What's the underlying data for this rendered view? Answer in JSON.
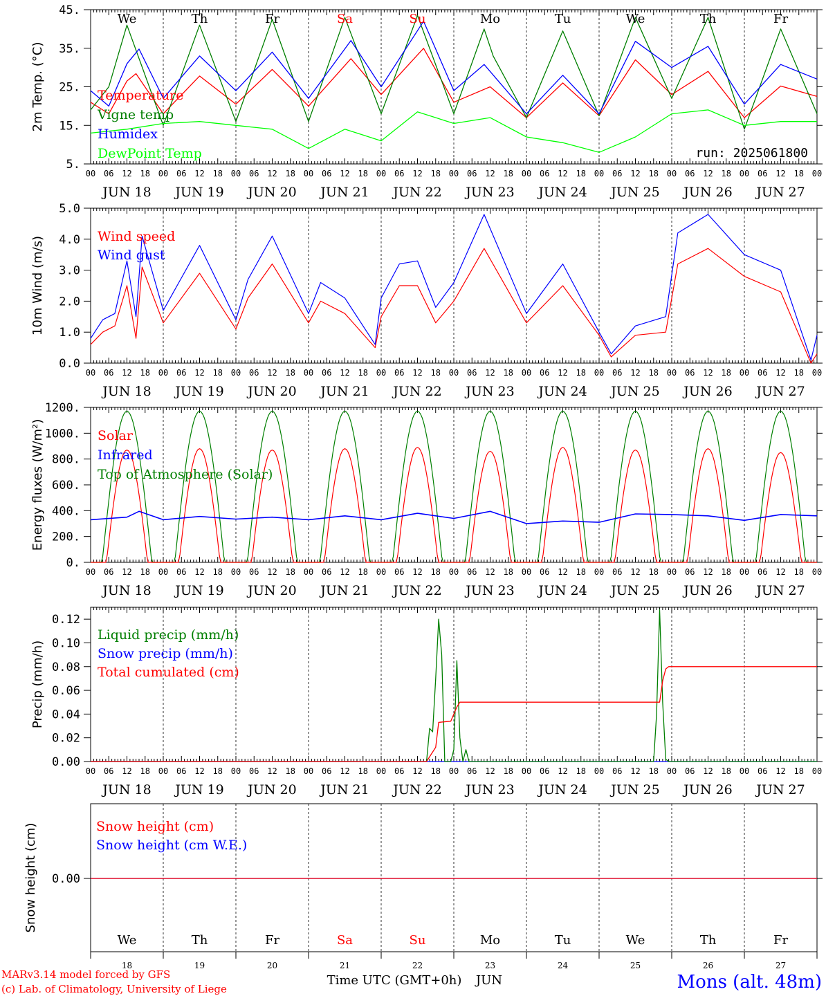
{
  "colors": {
    "temperature": "#ff0000",
    "vigne": "#007f00",
    "humidex": "#0000ff",
    "dewpoint": "#00ff00",
    "weekend": "#ff0000",
    "station": "#0000ff"
  },
  "days": [
    "JUN 18",
    "JUN 19",
    "JUN 20",
    "JUN 21",
    "JUN 22",
    "JUN 23",
    "JUN 24",
    "JUN 25",
    "JUN 26",
    "JUN 27"
  ],
  "weekdays": [
    {
      "label": "We",
      "weekend": false
    },
    {
      "label": "Th",
      "weekend": false
    },
    {
      "label": "Fr",
      "weekend": false
    },
    {
      "label": "Sa",
      "weekend": true
    },
    {
      "label": "Su",
      "weekend": true
    },
    {
      "label": "Mo",
      "weekend": false
    },
    {
      "label": "Tu",
      "weekend": false
    },
    {
      "label": "We",
      "weekend": false
    },
    {
      "label": "Th",
      "weekend": false
    },
    {
      "label": "Fr",
      "weekend": false
    }
  ],
  "day_numbers": [
    "18",
    "19",
    "20",
    "21",
    "22",
    "23",
    "24",
    "25",
    "26",
    "27"
  ],
  "hour_labels": [
    "00",
    "06",
    "12",
    "18"
  ],
  "final_hour_label": "00",
  "run_label": "run: 2025061800",
  "x_title": "Time UTC (GMT+0h)",
  "month": "JUN",
  "footer": {
    "line1": "MARv3.14 model forced by GFS",
    "line2": "(c) Lab. of Climatology, University of Liege",
    "station": "Mons (alt. 48m)"
  },
  "chart_data": [
    {
      "type": "line",
      "ylabel": "2m Temp. (°C)",
      "ylim": [
        5,
        45
      ],
      "yticks": [
        "5.",
        "15.",
        "25.",
        "35.",
        "45."
      ],
      "x_unit": "hours since 2025-06-18 00 UTC",
      "series": [
        {
          "name": "Temperature",
          "key": "temperature",
          "points": [
            [
              0,
              21
            ],
            [
              6,
              18
            ],
            [
              12,
              26.5
            ],
            [
              15,
              28.4
            ],
            [
              24,
              18
            ],
            [
              36,
              27.8
            ],
            [
              48,
              20.5
            ],
            [
              60,
              29.5
            ],
            [
              72,
              20
            ],
            [
              86,
              32.3
            ],
            [
              96,
              23
            ],
            [
              110,
              35
            ],
            [
              120,
              21
            ],
            [
              132,
              25
            ],
            [
              144,
              17
            ],
            [
              156,
              26
            ],
            [
              168,
              17.5
            ],
            [
              180,
              32
            ],
            [
              192,
              23
            ],
            [
              204,
              29
            ],
            [
              216,
              17
            ],
            [
              228,
              25.2
            ],
            [
              240,
              22.5
            ]
          ]
        },
        {
          "name": "Vigne temp",
          "key": "vigne",
          "points": [
            [
              0,
              19
            ],
            [
              6,
              25
            ],
            [
              12,
              41
            ],
            [
              24,
              15
            ],
            [
              36,
              41
            ],
            [
              48,
              16
            ],
            [
              60,
              42.5
            ],
            [
              72,
              16
            ],
            [
              84,
              43
            ],
            [
              96,
              18
            ],
            [
              108,
              43.5
            ],
            [
              120,
              18
            ],
            [
              130,
              40
            ],
            [
              133,
              33
            ],
            [
              144,
              17
            ],
            [
              156,
              39.5
            ],
            [
              168,
              17.5
            ],
            [
              180,
              43
            ],
            [
              192,
              22
            ],
            [
              204,
              43
            ],
            [
              216,
              14
            ],
            [
              228,
              40
            ],
            [
              240,
              18
            ]
          ]
        },
        {
          "name": "Humidex",
          "key": "humidex",
          "points": [
            [
              0,
              24
            ],
            [
              6,
              20
            ],
            [
              12,
              31
            ],
            [
              16,
              34.8
            ],
            [
              24,
              22
            ],
            [
              36,
              33
            ],
            [
              48,
              24
            ],
            [
              60,
              34
            ],
            [
              72,
              22
            ],
            [
              86,
              37
            ],
            [
              96,
              25
            ],
            [
              110,
              42
            ],
            [
              120,
              24
            ],
            [
              130,
              30.8
            ],
            [
              144,
              18
            ],
            [
              156,
              28
            ],
            [
              168,
              18
            ],
            [
              180,
              36.8
            ],
            [
              192,
              30
            ],
            [
              204,
              35.5
            ],
            [
              216,
              20.5
            ],
            [
              228,
              30.8
            ],
            [
              240,
              27
            ]
          ]
        },
        {
          "name": "DewPoint Temp",
          "key": "dewpoint",
          "points": [
            [
              0,
              13
            ],
            [
              12,
              14
            ],
            [
              24,
              15.5
            ],
            [
              36,
              16
            ],
            [
              48,
              15
            ],
            [
              60,
              14
            ],
            [
              72,
              9
            ],
            [
              84,
              14
            ],
            [
              96,
              11
            ],
            [
              108,
              18.5
            ],
            [
              120,
              15.5
            ],
            [
              132,
              17
            ],
            [
              144,
              12
            ],
            [
              156,
              10.5
            ],
            [
              168,
              8
            ],
            [
              180,
              12
            ],
            [
              192,
              18
            ],
            [
              204,
              19
            ],
            [
              216,
              15
            ],
            [
              228,
              16
            ],
            [
              240,
              16
            ]
          ]
        }
      ]
    },
    {
      "type": "line",
      "ylabel": "10m Wind (m/s)",
      "ylim": [
        0,
        5
      ],
      "yticks": [
        "0.0",
        "1.0",
        "2.0",
        "3.0",
        "4.0",
        "5.0"
      ],
      "series": [
        {
          "name": "Wind speed",
          "key": "temperature",
          "points": [
            [
              0,
              0.6
            ],
            [
              4,
              1.0
            ],
            [
              8,
              1.2
            ],
            [
              12,
              2.5
            ],
            [
              15,
              0.8
            ],
            [
              17,
              3.1
            ],
            [
              24,
              1.3
            ],
            [
              36,
              2.9
            ],
            [
              48,
              1.1
            ],
            [
              52,
              2.1
            ],
            [
              60,
              3.2
            ],
            [
              72,
              1.3
            ],
            [
              76,
              2.0
            ],
            [
              84,
              1.6
            ],
            [
              94,
              0.5
            ],
            [
              96,
              1.5
            ],
            [
              102,
              2.5
            ],
            [
              108,
              2.5
            ],
            [
              114,
              1.3
            ],
            [
              120,
              2.0
            ],
            [
              130,
              3.7
            ],
            [
              144,
              1.3
            ],
            [
              156,
              2.5
            ],
            [
              168,
              0.9
            ],
            [
              172,
              0.2
            ],
            [
              180,
              0.9
            ],
            [
              190,
              1.0
            ],
            [
              194,
              3.2
            ],
            [
              204,
              3.7
            ],
            [
              216,
              2.8
            ],
            [
              228,
              2.3
            ],
            [
              238,
              0.0
            ],
            [
              240,
              0.3
            ]
          ]
        },
        {
          "name": "Wind gust",
          "key": "humidex",
          "points": [
            [
              0,
              0.8
            ],
            [
              4,
              1.4
            ],
            [
              8,
              1.6
            ],
            [
              12,
              3.3
            ],
            [
              15,
              1.5
            ],
            [
              17,
              4.1
            ],
            [
              24,
              1.7
            ],
            [
              36,
              3.8
            ],
            [
              48,
              1.4
            ],
            [
              52,
              2.7
            ],
            [
              60,
              4.1
            ],
            [
              72,
              1.6
            ],
            [
              76,
              2.6
            ],
            [
              84,
              2.1
            ],
            [
              94,
              0.6
            ],
            [
              96,
              2.1
            ],
            [
              102,
              3.2
            ],
            [
              108,
              3.3
            ],
            [
              114,
              1.8
            ],
            [
              120,
              2.6
            ],
            [
              130,
              4.8
            ],
            [
              144,
              1.6
            ],
            [
              156,
              3.2
            ],
            [
              168,
              1.0
            ],
            [
              172,
              0.3
            ],
            [
              180,
              1.2
            ],
            [
              190,
              1.5
            ],
            [
              194,
              4.2
            ],
            [
              204,
              4.8
            ],
            [
              216,
              3.5
            ],
            [
              228,
              3.0
            ],
            [
              238,
              0.1
            ],
            [
              240,
              0.9
            ]
          ]
        }
      ]
    },
    {
      "type": "line",
      "ylabel": "Energy fluxes (W/m²)",
      "ylim": [
        0,
        1200
      ],
      "yticks": [
        "0.",
        "200.",
        "400.",
        "600.",
        "800.",
        "1000.",
        "1200."
      ],
      "series": [
        {
          "name": "Solar",
          "key": "temperature",
          "daily_peaks": [
            870,
            880,
            870,
            880,
            890,
            860,
            890,
            870,
            880,
            850
          ]
        },
        {
          "name": "Infrared",
          "key": "humidex",
          "points": [
            [
              0,
              330
            ],
            [
              12,
              350
            ],
            [
              16,
              395
            ],
            [
              24,
              330
            ],
            [
              36,
              355
            ],
            [
              48,
              335
            ],
            [
              60,
              350
            ],
            [
              72,
              330
            ],
            [
              84,
              360
            ],
            [
              96,
              330
            ],
            [
              108,
              380
            ],
            [
              120,
              340
            ],
            [
              132,
              395
            ],
            [
              144,
              300
            ],
            [
              156,
              320
            ],
            [
              168,
              310
            ],
            [
              180,
              375
            ],
            [
              192,
              370
            ],
            [
              204,
              360
            ],
            [
              216,
              325
            ],
            [
              228,
              370
            ],
            [
              240,
              360
            ]
          ]
        },
        {
          "name": "Top of Atmosphere (Solar)",
          "key": "vigne",
          "daily_peaks": [
            1170,
            1170,
            1170,
            1170,
            1170,
            1170,
            1170,
            1170,
            1170,
            1170
          ]
        }
      ]
    },
    {
      "type": "line",
      "ylabel": "Precip (mm/h)",
      "ylim": [
        0,
        0.13
      ],
      "yticks": [
        "0.00",
        "0.02",
        "0.04",
        "0.06",
        "0.08",
        "0.10",
        "0.12"
      ],
      "series": [
        {
          "name": "Liquid precip (mm/h)",
          "key": "vigne",
          "points": [
            [
              0,
              0
            ],
            [
              111,
              0
            ],
            [
              112,
              0.028
            ],
            [
              113,
              0.025
            ],
            [
              114,
              0.07
            ],
            [
              115,
              0.12
            ],
            [
              116,
              0.09
            ],
            [
              117,
              0
            ],
            [
              118,
              0
            ],
            [
              119,
              0
            ],
            [
              120,
              0.01
            ],
            [
              121,
              0.085
            ],
            [
              122,
              0.02
            ],
            [
              123,
              0
            ],
            [
              124,
              0.01
            ],
            [
              125,
              0
            ],
            [
              186,
              0
            ],
            [
              187,
              0.04
            ],
            [
              188,
              0.128
            ],
            [
              189,
              0.05
            ],
            [
              190,
              0.002
            ],
            [
              191,
              0
            ],
            [
              240,
              0
            ]
          ]
        },
        {
          "name": "Snow precip (mm/h)",
          "key": "humidex",
          "points": [
            [
              0,
              0
            ],
            [
              240,
              0
            ]
          ]
        },
        {
          "name": "Total cumulated (cm)",
          "key": "temperature",
          "points": [
            [
              0,
              0
            ],
            [
              111,
              0
            ],
            [
              114,
              0.012
            ],
            [
              115,
              0.033
            ],
            [
              119,
              0.034
            ],
            [
              121,
              0.046
            ],
            [
              122,
              0.05
            ],
            [
              188,
              0.05
            ],
            [
              189,
              0.068
            ],
            [
              190,
              0.078
            ],
            [
              191,
              0.08
            ],
            [
              240,
              0.08
            ]
          ]
        }
      ]
    },
    {
      "type": "line",
      "ylabel": "Snow height (cm)",
      "yticks": [
        "0.00"
      ],
      "series": [
        {
          "name": "Snow height (cm)",
          "key": "temperature",
          "points": [
            [
              0,
              0
            ],
            [
              240,
              0
            ]
          ]
        },
        {
          "name": "Snow height (cm W.E.)",
          "key": "humidex",
          "points": [
            [
              0,
              0
            ],
            [
              240,
              0
            ]
          ]
        }
      ]
    }
  ]
}
